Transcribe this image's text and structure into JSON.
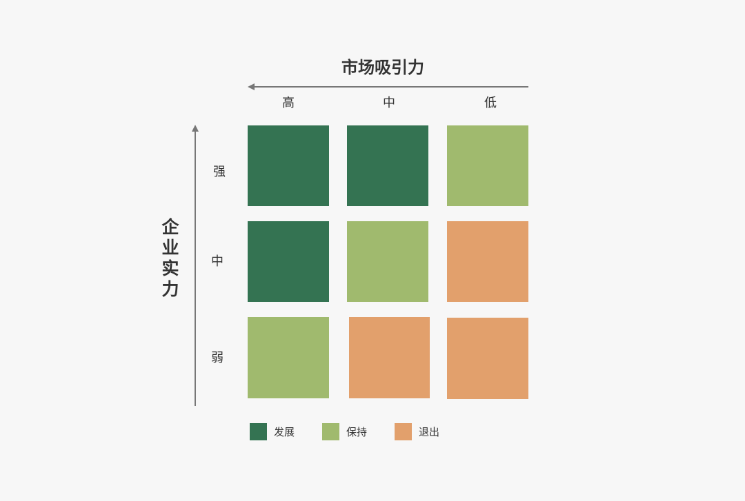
{
  "x_axis": {
    "title": "市场吸引力",
    "ticks": [
      "高",
      "中",
      "低"
    ]
  },
  "y_axis": {
    "title": "企业实力",
    "title_chars": [
      "企",
      "业",
      "实",
      "力"
    ],
    "ticks": [
      "强",
      "中",
      "弱"
    ]
  },
  "colors": {
    "develop": "#347352",
    "hold": "#a0ba6e",
    "exit": "#e2a06c",
    "axis": "#777777"
  },
  "matrix": [
    [
      "develop",
      "develop",
      "hold"
    ],
    [
      "develop",
      "hold",
      "exit"
    ],
    [
      "hold",
      "exit",
      "exit"
    ]
  ],
  "legend": [
    {
      "key": "develop",
      "label": "发展"
    },
    {
      "key": "hold",
      "label": "保持"
    },
    {
      "key": "exit",
      "label": "退出"
    }
  ]
}
